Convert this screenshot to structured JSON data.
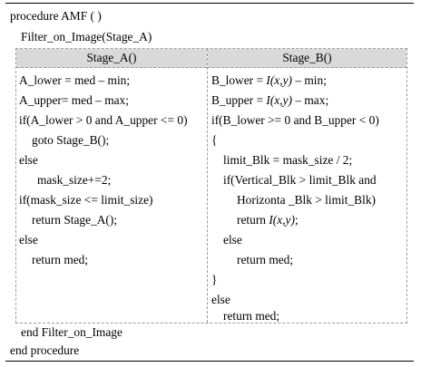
{
  "header": {
    "line1": "procedure AMF ( )",
    "line2": "Filter_on_Image(Stage_A)"
  },
  "stage_a": {
    "title": "Stage_A()",
    "lines": [
      "A_lower = med – min;",
      "A_upper= med – max;",
      "if(A_lower > 0 and A_upper <= 0)",
      "goto Stage_B();",
      "else",
      "mask_size+=2;",
      "if(mask_size <= limit_size)",
      "return Stage_A();",
      "else",
      "return med;"
    ]
  },
  "stage_b": {
    "title": "Stage_B()",
    "l1_pre": "B_lower = ",
    "l1_it": "I(x,y)",
    "l1_post": " – min;",
    "l2_pre": "B_upper = ",
    "l2_it": "I(x,y)",
    "l2_post": " – max;",
    "l3": "if(B_lower >= 0 and B_upper < 0)",
    "l4": "{",
    "l5": "limit_Blk = mask_size / 2;",
    "l6": "if(Vertical_Blk > limit_Blk and",
    "l7": "Horizonta _Blk > limit_Blk)",
    "l8_pre": "return ",
    "l8_it": "I(x,y)",
    "l8_post": ";",
    "l9": "else",
    "l10": "return med;",
    "l11": "}",
    "l12": "else",
    "l13": "return med;"
  },
  "footer": {
    "line1": "end Filter_on_Image",
    "line2": "end procedure"
  }
}
